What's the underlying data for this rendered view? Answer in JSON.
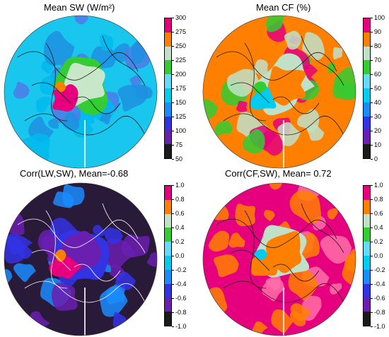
{
  "figure": {
    "panels": [
      {
        "id": "mean-sw",
        "title": "Mean SW (W/m²)",
        "ticks": [
          "300",
          "275",
          "250",
          "225",
          "200",
          "175",
          "150",
          "125",
          "100",
          "75",
          "50"
        ],
        "colors": [
          "#e6007e",
          "#ff8000",
          "#c0e0c8",
          "#33cc33",
          "#66d9ff",
          "#00ccf0",
          "#1a8cff",
          "#3333e6",
          "#6a1fb0",
          "#1a1a1a"
        ],
        "ocean": "#19c6ee",
        "patches": [
          "#1e8fe0",
          "#00b8ec",
          "#4d7ae8"
        ],
        "center": "#c8e6c8",
        "center_ring": "#33cc33",
        "hot": "#e6007e",
        "hot2": "#ff8000",
        "coast": "#1a1a1a"
      },
      {
        "id": "mean-cf",
        "title": "Mean CF (%)",
        "ticks": [
          "100",
          "90",
          "80",
          "70",
          "60",
          "50",
          "40",
          "30",
          "20",
          "10",
          "0"
        ],
        "colors": [
          "#e6007e",
          "#ff8000",
          "#c0e0c8",
          "#33cc33",
          "#66d9ff",
          "#00ccf0",
          "#1a8cff",
          "#3333e6",
          "#6a1fb0",
          "#1a1a1a"
        ],
        "ocean": "#ff8000",
        "patches": [
          "#33cc33",
          "#c0e0c8",
          "#e6007e"
        ],
        "center": "#ff8000",
        "center_ring": "#c0e0c8",
        "hot": "#00ccf0",
        "hot2": "#33cc33",
        "coast": "#1a1a1a"
      },
      {
        "id": "corr-lw-sw",
        "title": "Corr(LW,SW), Mean=-0.68",
        "ticks": [
          "1.0",
          "0.8",
          "0.6",
          "0.4",
          "0.2",
          "0.0",
          "-0.2",
          "-0.4",
          "-0.6",
          "-0.8",
          "-1.0"
        ],
        "colors": [
          "#e6007e",
          "#ff8000",
          "#c0e0c8",
          "#33cc33",
          "#66d9ff",
          "#00ccf0",
          "#1a8cff",
          "#3333e6",
          "#6a1fb0",
          "#1a1a1a"
        ],
        "ocean": "#2a1a3a",
        "patches": [
          "#6a1fb0",
          "#1a8cff",
          "#3333e6"
        ],
        "center": "#6a1fb0",
        "center_ring": "#3333e6",
        "hot": "#e6007e",
        "hot2": "#ff8000",
        "coast": "#ffffff"
      },
      {
        "id": "corr-cf-sw",
        "title": "Corr(CF,SW), Mean= 0.72",
        "ticks": [
          "1.0",
          "0.8",
          "0.6",
          "0.4",
          "0.2",
          "0.0",
          "-0.2",
          "-0.4",
          "-0.6",
          "-0.8",
          "-1.0"
        ],
        "colors": [
          "#e6007e",
          "#ff8000",
          "#c0e0c8",
          "#33cc33",
          "#66d9ff",
          "#00ccf0",
          "#1a8cff",
          "#3333e6",
          "#6a1fb0",
          "#1a1a1a"
        ],
        "ocean": "#e6007e",
        "patches": [
          "#ff8000",
          "#ff6fa8",
          "#ff8000"
        ],
        "center": "#ff8000",
        "center_ring": "#c0e0c8",
        "hot": "#ff8000",
        "hot2": "#00ccf0",
        "coast": "#1a1a1a"
      }
    ]
  }
}
